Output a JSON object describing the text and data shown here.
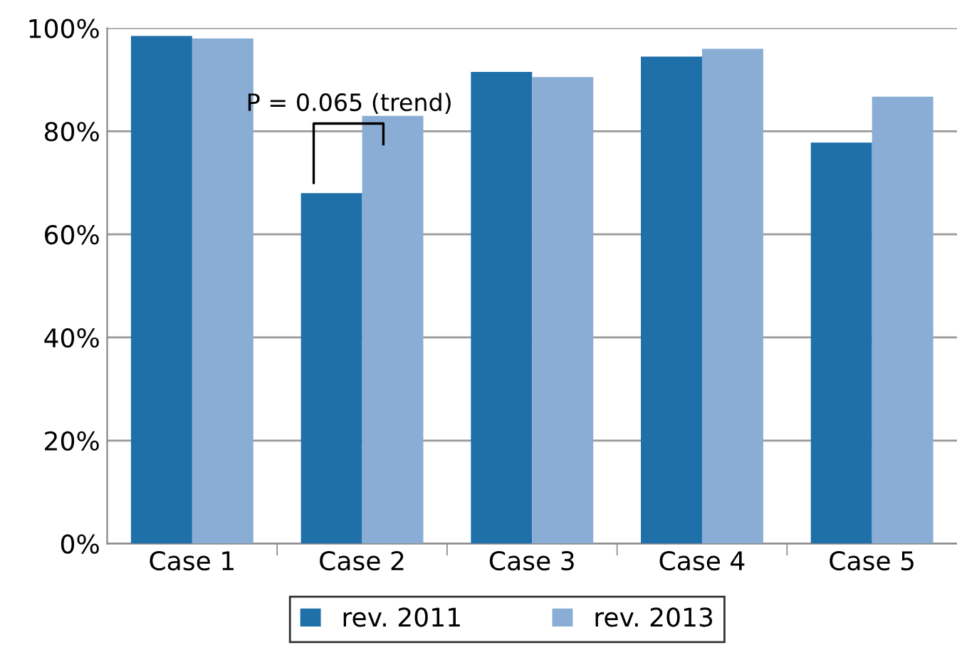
{
  "chart_data": {
    "type": "bar",
    "categories": [
      "Case 1",
      "Case 2",
      "Case 3",
      "Case 4",
      "Case 5"
    ],
    "series": [
      {
        "name": "rev. 2011",
        "color": "#1f6fa8",
        "values": [
          98.5,
          68,
          91.5,
          94.5,
          77.8
        ]
      },
      {
        "name": "rev. 2013",
        "color": "#8aadd5",
        "values": [
          98,
          83,
          90.5,
          96,
          86.7
        ]
      }
    ],
    "ylim": [
      0,
      100
    ],
    "yticks": [
      {
        "value": 0,
        "label": "0%"
      },
      {
        "value": 20,
        "label": "20%"
      },
      {
        "value": 40,
        "label": "40%"
      },
      {
        "value": 60,
        "label": "60%"
      },
      {
        "value": 80,
        "label": "80%"
      },
      {
        "value": 100,
        "label": "100%"
      }
    ],
    "grid": "y",
    "legend": "bottom",
    "annotations": [
      "P = 0.065 (trend)"
    ]
  }
}
